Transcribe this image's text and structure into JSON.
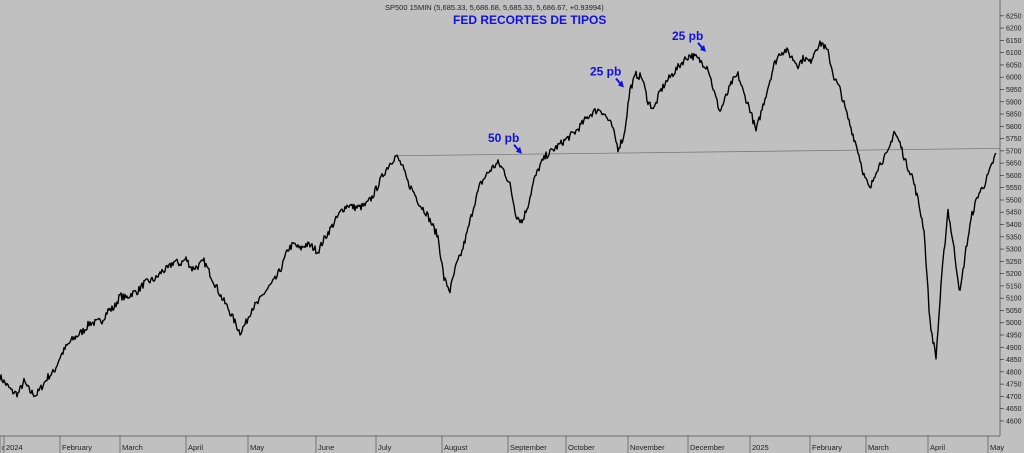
{
  "header": {
    "info": "SP500 15MIN (5,685.33, 5,686.68, 5,685.33, 5,686.67, +0.93994)",
    "title": "FED RECORTES DE TIPOS"
  },
  "colors": {
    "background": "#c0c0c0",
    "price": "#000000",
    "annotation": "#1010e0",
    "trendline": "#7a7a7a"
  },
  "chart_data": {
    "type": "line",
    "series_label": "SP500 15MIN",
    "ylim": [
      4555,
      6290
    ],
    "y_ticks": [
      4600,
      4650,
      4700,
      4750,
      4800,
      4850,
      4900,
      4950,
      5000,
      5050,
      5100,
      5150,
      5200,
      5250,
      5300,
      5350,
      5400,
      5450,
      5500,
      5550,
      5600,
      5650,
      5700,
      5750,
      5800,
      5850,
      5900,
      5950,
      6000,
      6050,
      6100,
      6150,
      6200,
      6250
    ],
    "x_labels": [
      {
        "label": "r",
        "x": 0
      },
      {
        "label": "2024",
        "x": 2
      },
      {
        "label": "February",
        "x": 30
      },
      {
        "label": "March",
        "x": 60
      },
      {
        "label": "April",
        "x": 93
      },
      {
        "label": "May",
        "x": 124
      },
      {
        "label": "June",
        "x": 158
      },
      {
        "label": "July",
        "x": 188
      },
      {
        "label": "August",
        "x": 221
      },
      {
        "label": "September",
        "x": 254
      },
      {
        "label": "October",
        "x": 283
      },
      {
        "label": "November",
        "x": 314
      },
      {
        "label": "December",
        "x": 344
      },
      {
        "label": "2025",
        "x": 375
      },
      {
        "label": "February",
        "x": 405
      },
      {
        "label": "March",
        "x": 433
      },
      {
        "label": "April",
        "x": 464
      },
      {
        "label": "May",
        "x": 494
      }
    ],
    "xlim": [
      0,
      500
    ],
    "points": [
      [
        0,
        4780
      ],
      [
        3,
        4750
      ],
      [
        6,
        4720
      ],
      [
        9,
        4710
      ],
      [
        12,
        4760
      ],
      [
        15,
        4720
      ],
      [
        18,
        4705
      ],
      [
        21,
        4740
      ],
      [
        24,
        4780
      ],
      [
        27,
        4800
      ],
      [
        30,
        4860
      ],
      [
        33,
        4900
      ],
      [
        36,
        4930
      ],
      [
        39,
        4950
      ],
      [
        42,
        4970
      ],
      [
        45,
        5000
      ],
      [
        48,
        5000
      ],
      [
        51,
        5010
      ],
      [
        54,
        5050
      ],
      [
        57,
        5060
      ],
      [
        60,
        5110
      ],
      [
        63,
        5100
      ],
      [
        66,
        5120
      ],
      [
        69,
        5130
      ],
      [
        72,
        5160
      ],
      [
        75,
        5170
      ],
      [
        78,
        5180
      ],
      [
        81,
        5210
      ],
      [
        84,
        5220
      ],
      [
        87,
        5250
      ],
      [
        90,
        5240
      ],
      [
        93,
        5260
      ],
      [
        96,
        5220
      ],
      [
        99,
        5230
      ],
      [
        102,
        5250
      ],
      [
        105,
        5200
      ],
      [
        108,
        5150
      ],
      [
        111,
        5100
      ],
      [
        114,
        5060
      ],
      [
        117,
        5010
      ],
      [
        120,
        4960
      ],
      [
        123,
        5000
      ],
      [
        126,
        5060
      ],
      [
        129,
        5080
      ],
      [
        132,
        5120
      ],
      [
        135,
        5150
      ],
      [
        138,
        5180
      ],
      [
        141,
        5230
      ],
      [
        144,
        5300
      ],
      [
        147,
        5320
      ],
      [
        150,
        5300
      ],
      [
        153,
        5320
      ],
      [
        156,
        5310
      ],
      [
        159,
        5290
      ],
      [
        162,
        5340
      ],
      [
        165,
        5380
      ],
      [
        168,
        5420
      ],
      [
        171,
        5460
      ],
      [
        174,
        5480
      ],
      [
        177,
        5470
      ],
      [
        180,
        5470
      ],
      [
        183,
        5480
      ],
      [
        186,
        5510
      ],
      [
        189,
        5560
      ],
      [
        192,
        5610
      ],
      [
        195,
        5650
      ],
      [
        198,
        5680
      ],
      [
        201,
        5640
      ],
      [
        204,
        5570
      ],
      [
        207,
        5530
      ],
      [
        210,
        5480
      ],
      [
        213,
        5450
      ],
      [
        216,
        5400
      ],
      [
        219,
        5350
      ],
      [
        222,
        5180
      ],
      [
        225,
        5130
      ],
      [
        228,
        5230
      ],
      [
        231,
        5290
      ],
      [
        234,
        5380
      ],
      [
        237,
        5480
      ],
      [
        240,
        5560
      ],
      [
        243,
        5600
      ],
      [
        246,
        5630
      ],
      [
        249,
        5650
      ],
      [
        252,
        5620
      ],
      [
        255,
        5560
      ],
      [
        258,
        5440
      ],
      [
        261,
        5410
      ],
      [
        264,
        5480
      ],
      [
        267,
        5580
      ],
      [
        270,
        5640
      ],
      [
        273,
        5680
      ],
      [
        276,
        5700
      ],
      [
        279,
        5720
      ],
      [
        282,
        5740
      ],
      [
        285,
        5760
      ],
      [
        288,
        5780
      ],
      [
        291,
        5810
      ],
      [
        294,
        5840
      ],
      [
        297,
        5860
      ],
      [
        300,
        5870
      ],
      [
        303,
        5840
      ],
      [
        306,
        5800
      ],
      [
        309,
        5710
      ],
      [
        312,
        5760
      ],
      [
        315,
        5950
      ],
      [
        318,
        6010
      ],
      [
        321,
        6000
      ],
      [
        324,
        5900
      ],
      [
        327,
        5870
      ],
      [
        330,
        5940
      ],
      [
        333,
        5980
      ],
      [
        336,
        6010
      ],
      [
        339,
        6040
      ],
      [
        342,
        6070
      ],
      [
        345,
        6090
      ],
      [
        348,
        6080
      ],
      [
        351,
        6060
      ],
      [
        354,
        6040
      ],
      [
        357,
        5940
      ],
      [
        360,
        5860
      ],
      [
        363,
        5920
      ],
      [
        366,
        5980
      ],
      [
        369,
        6010
      ],
      [
        372,
        5930
      ],
      [
        375,
        5870
      ],
      [
        378,
        5780
      ],
      [
        381,
        5870
      ],
      [
        384,
        5960
      ],
      [
        387,
        6050
      ],
      [
        390,
        6100
      ],
      [
        393,
        6110
      ],
      [
        396,
        6080
      ],
      [
        399,
        6050
      ],
      [
        402,
        6080
      ],
      [
        405,
        6060
      ],
      [
        408,
        6120
      ],
      [
        411,
        6140
      ],
      [
        414,
        6100
      ],
      [
        417,
        6000
      ],
      [
        420,
        5950
      ],
      [
        423,
        5860
      ],
      [
        426,
        5780
      ],
      [
        429,
        5700
      ],
      [
        432,
        5600
      ],
      [
        435,
        5540
      ],
      [
        438,
        5620
      ],
      [
        441,
        5660
      ],
      [
        444,
        5690
      ],
      [
        447,
        5780
      ],
      [
        450,
        5730
      ],
      [
        453,
        5650
      ],
      [
        456,
        5600
      ],
      [
        459,
        5500
      ],
      [
        462,
        5380
      ],
      [
        465,
        5000
      ],
      [
        468,
        4860
      ],
      [
        471,
        5200
      ],
      [
        474,
        5460
      ],
      [
        477,
        5300
      ],
      [
        480,
        5120
      ],
      [
        483,
        5300
      ],
      [
        486,
        5440
      ],
      [
        489,
        5520
      ],
      [
        492,
        5560
      ],
      [
        495,
        5620
      ],
      [
        498,
        5690
      ]
    ],
    "trendline": [
      [
        198,
        5680
      ],
      [
        500,
        5710
      ]
    ],
    "annotations": [
      {
        "text": "50 pb",
        "x": 261,
        "y": 5680
      },
      {
        "text": "25 pb",
        "x": 312,
        "y": 5950
      },
      {
        "text": "25 pb",
        "x": 353,
        "y": 6095
      }
    ],
    "grid": false
  }
}
